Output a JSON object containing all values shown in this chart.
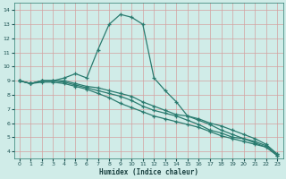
{
  "xlabel": "Humidex (Indice chaleur)",
  "xlim": [
    -0.5,
    23.5
  ],
  "ylim": [
    3.5,
    14.5
  ],
  "xticks": [
    0,
    1,
    2,
    3,
    4,
    5,
    6,
    7,
    8,
    9,
    10,
    11,
    12,
    13,
    14,
    15,
    16,
    17,
    18,
    19,
    20,
    21,
    22,
    23
  ],
  "yticks": [
    4,
    5,
    6,
    7,
    8,
    9,
    10,
    11,
    12,
    13,
    14
  ],
  "bg_color": "#d0ece8",
  "grid_color": "#d4a0a0",
  "line_color": "#2a7b6f",
  "line1_x": [
    0,
    1,
    2,
    3,
    4,
    5,
    6,
    7,
    8,
    9,
    10,
    11,
    12,
    13,
    14,
    15,
    16,
    17,
    18,
    19,
    20,
    21,
    22,
    23
  ],
  "line1_y": [
    9.0,
    8.8,
    9.0,
    9.0,
    9.2,
    9.5,
    9.2,
    11.2,
    13.0,
    13.7,
    13.5,
    13.0,
    9.2,
    8.3,
    7.5,
    6.5,
    6.2,
    5.9,
    5.5,
    5.2,
    4.9,
    4.6,
    4.3,
    3.7
  ],
  "line2_x": [
    0,
    1,
    2,
    3,
    4,
    5,
    6,
    7,
    8,
    9,
    10,
    11,
    12,
    13,
    14,
    15,
    16,
    17,
    18,
    19,
    20,
    21,
    22,
    23
  ],
  "line2_y": [
    9.0,
    8.8,
    9.0,
    9.0,
    9.0,
    8.8,
    8.6,
    8.5,
    8.3,
    8.1,
    7.9,
    7.5,
    7.2,
    6.9,
    6.6,
    6.5,
    6.3,
    6.0,
    5.8,
    5.5,
    5.2,
    4.9,
    4.5,
    3.8
  ],
  "line3_x": [
    0,
    1,
    2,
    3,
    4,
    5,
    6,
    7,
    8,
    9,
    10,
    11,
    12,
    13,
    14,
    15,
    16,
    17,
    18,
    19,
    20,
    21,
    22,
    23
  ],
  "line3_y": [
    9.0,
    8.8,
    9.0,
    9.0,
    8.9,
    8.7,
    8.5,
    8.3,
    8.1,
    7.9,
    7.6,
    7.2,
    6.9,
    6.7,
    6.5,
    6.2,
    5.9,
    5.5,
    5.3,
    5.0,
    4.9,
    4.7,
    4.4,
    3.8
  ],
  "line4_x": [
    0,
    1,
    2,
    3,
    4,
    5,
    6,
    7,
    8,
    9,
    10,
    11,
    12,
    13,
    14,
    15,
    16,
    17,
    18,
    19,
    20,
    21,
    22,
    23
  ],
  "line4_y": [
    9.0,
    8.8,
    8.9,
    8.9,
    8.8,
    8.6,
    8.4,
    8.1,
    7.8,
    7.4,
    7.1,
    6.8,
    6.5,
    6.3,
    6.1,
    5.9,
    5.7,
    5.4,
    5.1,
    4.9,
    4.7,
    4.5,
    4.3,
    3.7
  ]
}
